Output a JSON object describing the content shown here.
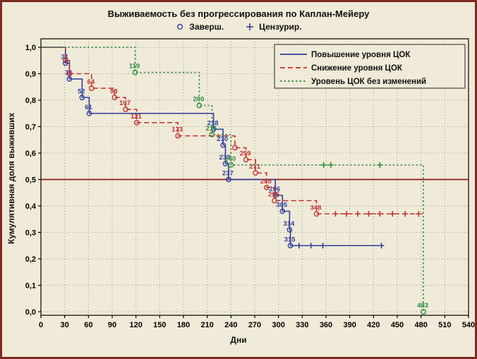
{
  "colors": {
    "background": "#f0ead8",
    "frame": "#7d2b1f",
    "grid": "#9a9488",
    "axis": "#000000",
    "reference_line": "#8b1c1c",
    "marker_legend": "#2e3e9e"
  },
  "top_legend": {
    "completed_label": "Заверш.",
    "censored_label": "Цензурир."
  },
  "chart_data": {
    "type": "line",
    "subtype": "kaplan-meier-step",
    "title": "Выживаемость без прогрессирования по Каплан-Мейеру",
    "xlabel": "Дни",
    "ylabel": "Кумулятивная доля выживших",
    "xlim": [
      0,
      540
    ],
    "ylim": [
      0,
      1
    ],
    "x_ticks": [
      0,
      30,
      60,
      90,
      120,
      150,
      180,
      210,
      240,
      270,
      300,
      330,
      360,
      390,
      420,
      450,
      480,
      510,
      540
    ],
    "y_tick_values": [
      0,
      0.1,
      0.2,
      0.3,
      0.4,
      0.5,
      0.6,
      0.7,
      0.8,
      0.9,
      1
    ],
    "y_tick_labels": [
      "0,0",
      "0,1",
      "0,2",
      "0,3",
      "0,4",
      "0,5",
      "0,6",
      "0,7",
      "0,8",
      "0,9",
      "1,0"
    ],
    "grid": true,
    "reference_line_y": 0.5,
    "legend_position": "top-right-inside",
    "event_marker": "circle",
    "censored_marker": "plus",
    "series": [
      {
        "name": "Повышение уровня ЦОК",
        "color": "#2e3e9e",
        "line_style": "solid",
        "end_day": 432,
        "events": [
          {
            "day": 31,
            "s": 0.94
          },
          {
            "day": 36,
            "s": 0.88
          },
          {
            "day": 52,
            "s": 0.81
          },
          {
            "day": 61,
            "s": 0.75
          },
          {
            "day": 218,
            "s": 0.69
          },
          {
            "day": 230,
            "s": 0.63
          },
          {
            "day": 233,
            "s": 0.56
          },
          {
            "day": 237,
            "s": 0.5
          },
          {
            "day": 296,
            "s": 0.44
          },
          {
            "day": 305,
            "s": 0.38
          },
          {
            "day": 314,
            "s": 0.31
          },
          {
            "day": 315,
            "s": 0.25
          }
        ],
        "censored": [
          {
            "day": 326,
            "s": 0.25
          },
          {
            "day": 341,
            "s": 0.25
          },
          {
            "day": 356,
            "s": 0.25
          },
          {
            "day": 430,
            "s": 0.25
          }
        ]
      },
      {
        "name": "Снижение уровня ЦОК",
        "color": "#c22f2f",
        "line_style": "dashed",
        "end_day": 482,
        "events": [
          {
            "day": 31,
            "s": 0.95,
            "label": ""
          },
          {
            "day": 36,
            "s": 0.9,
            "label": ""
          },
          {
            "day": 64,
            "s": 0.845
          },
          {
            "day": 93,
            "s": 0.81
          },
          {
            "day": 107,
            "s": 0.765
          },
          {
            "day": 121,
            "s": 0.715
          },
          {
            "day": 173,
            "s": 0.665
          },
          {
            "day": 245,
            "s": 0.62,
            "label": ""
          },
          {
            "day": 259,
            "s": 0.575
          },
          {
            "day": 271,
            "s": 0.525
          },
          {
            "day": 285,
            "s": 0.47
          },
          {
            "day": 295,
            "s": 0.42
          },
          {
            "day": 348,
            "s": 0.37
          }
        ],
        "censored": [
          {
            "day": 372,
            "s": 0.37
          },
          {
            "day": 386,
            "s": 0.37
          },
          {
            "day": 400,
            "s": 0.37
          },
          {
            "day": 414,
            "s": 0.37
          },
          {
            "day": 428,
            "s": 0.37
          },
          {
            "day": 444,
            "s": 0.37
          },
          {
            "day": 460,
            "s": 0.37
          },
          {
            "day": 477,
            "s": 0.37
          }
        ]
      },
      {
        "name": "Уровень ЦОК без изменений",
        "color": "#2c8c3c",
        "line_style": "dotted",
        "end_day": 483,
        "events": [
          {
            "day": 119,
            "s": 0.905
          },
          {
            "day": 200,
            "s": 0.78
          },
          {
            "day": 216,
            "s": 0.67
          },
          {
            "day": 240,
            "s": 0.555
          },
          {
            "day": 483,
            "s": 0.0
          }
        ],
        "censored": [
          {
            "day": 357,
            "s": 0.555
          },
          {
            "day": 366,
            "s": 0.555
          },
          {
            "day": 428,
            "s": 0.555
          }
        ]
      }
    ]
  }
}
